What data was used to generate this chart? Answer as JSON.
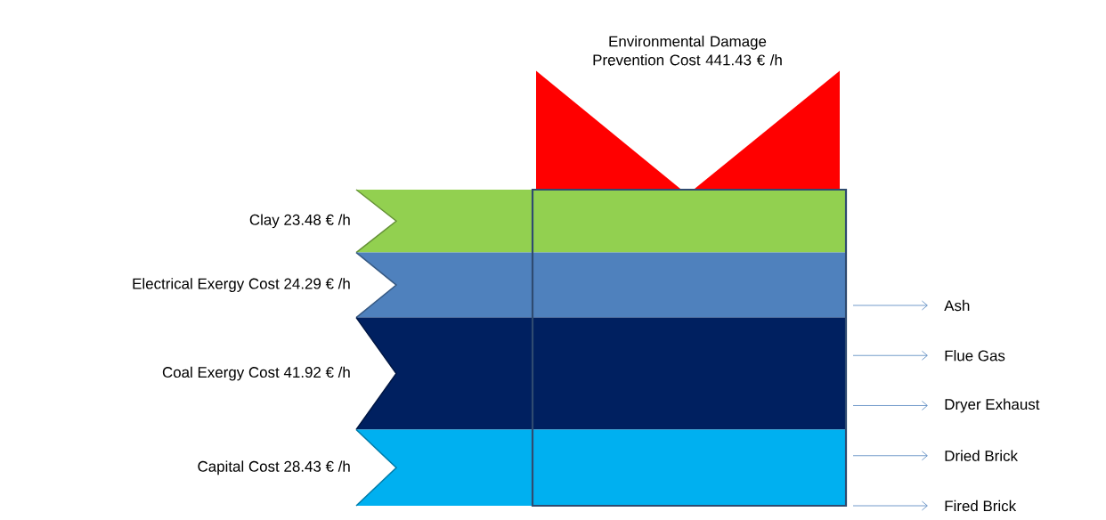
{
  "chart_data": {
    "type": "other",
    "categories": [
      "Environmental Damage Prevention Cost",
      "Clay",
      "Electrical Exergy Cost",
      "Coal Exergy Cost",
      "Capital Cost"
    ],
    "values": [
      441.43,
      23.48,
      24.29,
      41.92,
      28.43
    ],
    "value_labels": [
      "441.43 € /h",
      "23.48 € /h",
      "24.29 € /h",
      "41.92 € /h",
      "28.43 € /h"
    ],
    "colors": [
      "#ff0000",
      "#92d050",
      "#4f81bd",
      "#002060",
      "#00b0f0"
    ],
    "annotations": [
      "Ash",
      "Flue Gas",
      "Dryer Exhaust",
      "Dried Brick",
      "Fired Brick"
    ]
  }
}
